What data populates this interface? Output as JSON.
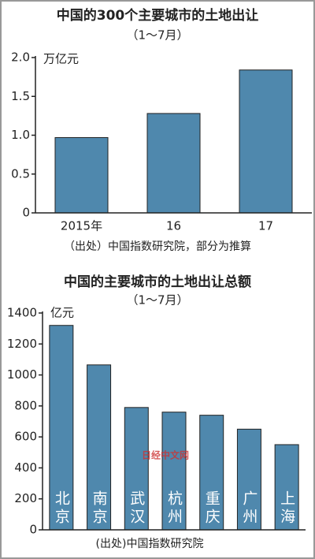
{
  "chart_data": [
    {
      "type": "bar",
      "title": "中国的300个主要城市的土地出让",
      "subtitle": "（1～7月）",
      "unit": "万亿元",
      "categories": [
        "2015年",
        "16",
        "17"
      ],
      "values": [
        0.97,
        1.28,
        1.84
      ],
      "color": "#4f88ad",
      "ylim": [
        0,
        2
      ],
      "yticks": [
        0,
        0.5,
        {
          "value": 1,
          "label": "1.0"
        },
        1.5,
        {
          "value": 2,
          "label": "2.0"
        }
      ],
      "source": "（出处）中国指数研究院，部分为推算"
    },
    {
      "type": "bar",
      "title": "中国的主要城市的土地出让总额",
      "subtitle": "（1～7月）",
      "unit": "亿元",
      "categories": [
        "北京",
        "南京",
        "武汉",
        "杭州",
        "重庆",
        "广州",
        "上海"
      ],
      "values": [
        1320,
        1065,
        790,
        760,
        740,
        650,
        550
      ],
      "color": "#4f88ad",
      "ylim": [
        0,
        1400
      ],
      "yticks": [
        0,
        200,
        400,
        600,
        800,
        1000,
        1200,
        1400
      ],
      "source": "(出处)中国指数研究院",
      "watermark": "日经中文网"
    }
  ]
}
